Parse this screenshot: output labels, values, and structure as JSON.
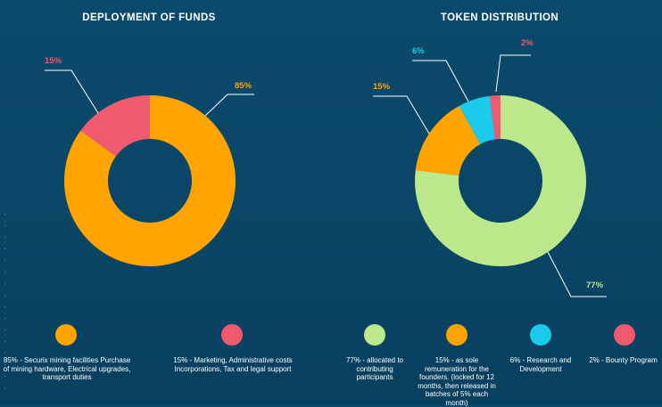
{
  "chart_data": [
    {
      "type": "pie",
      "title": "DEPLOYMENT OF FUNDS",
      "slices": [
        {
          "label": "85% - Securix mining facilities Purchase of mining hardware, Electrical upgrades, transport duties",
          "pct_label": "85%",
          "value": 85,
          "color": "#ffa400"
        },
        {
          "label": "15% - Marketing, Administrative costs Incorporations, Tax and legal support",
          "pct_label": "15%",
          "value": 15,
          "color": "#ef5a6f"
        }
      ]
    },
    {
      "type": "pie",
      "title": "TOKEN DISTRIBUTION",
      "slices": [
        {
          "label": "77% - allocated to contributing participants",
          "pct_label": "77%",
          "value": 77,
          "color": "#bce78a"
        },
        {
          "label": "15% - as sole remuneration for the founders. (locked for 12 months, then released in batches of 5% each month)",
          "pct_label": "15%",
          "value": 15,
          "color": "#ffa400"
        },
        {
          "label": "6% - Research and Development",
          "pct_label": "6%",
          "value": 6,
          "color": "#1ccbec"
        },
        {
          "label": "2% - Bounty Program",
          "pct_label": "2%",
          "value": 2,
          "color": "#ef5a6f"
        }
      ]
    }
  ],
  "legend_left": [
    {
      "text": "85% - Securix mining facilities Purchase of mining hardware, Electrical upgrades, transport duties",
      "color": "#ffa400"
    },
    {
      "text": "15% - Marketing, Administrative costs Incorporations, Tax and legal support",
      "color": "#ef5a6f"
    }
  ],
  "legend_right": [
    {
      "text": "77% - allocated to contributing participants",
      "color": "#bce78a"
    },
    {
      "text": "15% - as sole remuneration for the founders. (locked for 12 months, then released in batches of 5% each month)",
      "color": "#ffa400"
    },
    {
      "text": "6% - Research and Development",
      "color": "#1ccbec"
    },
    {
      "text": "2% - Bounty Program",
      "color": "#ef5a6f"
    }
  ]
}
